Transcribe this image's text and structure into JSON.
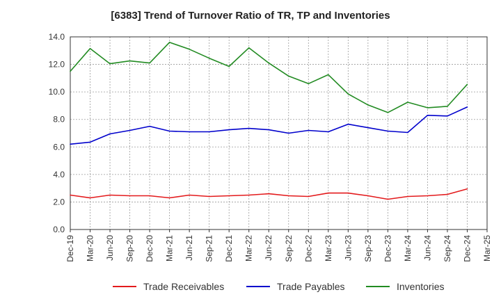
{
  "chart_data": {
    "type": "line",
    "title": "[6383]  Trend of Turnover Ratio of TR, TP and Inventories",
    "xlabel": "",
    "ylabel": "",
    "ylim": [
      0,
      14
    ],
    "yticks": [
      "0.0",
      "2.0",
      "4.0",
      "6.0",
      "8.0",
      "10.0",
      "12.0",
      "14.0"
    ],
    "grid": "dashed",
    "legend_position": "bottom",
    "x_tick_labels": [
      "Dec-19",
      "Mar-20",
      "Jun-20",
      "Sep-20",
      "Dec-20",
      "Mar-21",
      "Jun-21",
      "Sep-21",
      "Dec-21",
      "Mar-22",
      "Jun-22",
      "Sep-22",
      "Dec-22",
      "Mar-23",
      "Jun-23",
      "Sep-23",
      "Dec-23",
      "Mar-24",
      "Jun-24",
      "Sep-24",
      "Dec-24",
      "Mar-25"
    ],
    "x": [
      "Dec-19",
      "Mar-20",
      "Jun-20",
      "Sep-20",
      "Dec-20",
      "Mar-21",
      "Jun-21",
      "Sep-21",
      "Dec-21",
      "Mar-22",
      "Jun-22",
      "Sep-22",
      "Dec-22",
      "Mar-23",
      "Jun-23",
      "Sep-23",
      "Dec-23",
      "Mar-24",
      "Jun-24",
      "Sep-24",
      "Dec-24"
    ],
    "series": [
      {
        "name": "Trade Receivables",
        "color": "#e31a1c",
        "values": [
          2.5,
          2.3,
          2.5,
          2.45,
          2.45,
          2.3,
          2.5,
          2.4,
          2.45,
          2.5,
          2.6,
          2.45,
          2.4,
          2.65,
          2.65,
          2.45,
          2.2,
          2.4,
          2.45,
          2.55,
          2.95
        ]
      },
      {
        "name": "Trade Payables",
        "color": "#0000cc",
        "values": [
          6.2,
          6.35,
          6.95,
          7.2,
          7.5,
          7.15,
          7.1,
          7.1,
          7.25,
          7.35,
          7.25,
          7.0,
          7.2,
          7.1,
          7.65,
          7.4,
          7.15,
          7.05,
          8.3,
          8.25,
          8.9
        ]
      },
      {
        "name": "Inventories",
        "color": "#228b22",
        "values": [
          11.5,
          13.15,
          12.05,
          12.25,
          12.1,
          13.6,
          13.1,
          12.45,
          11.85,
          13.2,
          12.1,
          11.15,
          10.6,
          11.25,
          9.85,
          9.05,
          8.5,
          9.25,
          8.85,
          8.95,
          10.55
        ]
      }
    ]
  }
}
